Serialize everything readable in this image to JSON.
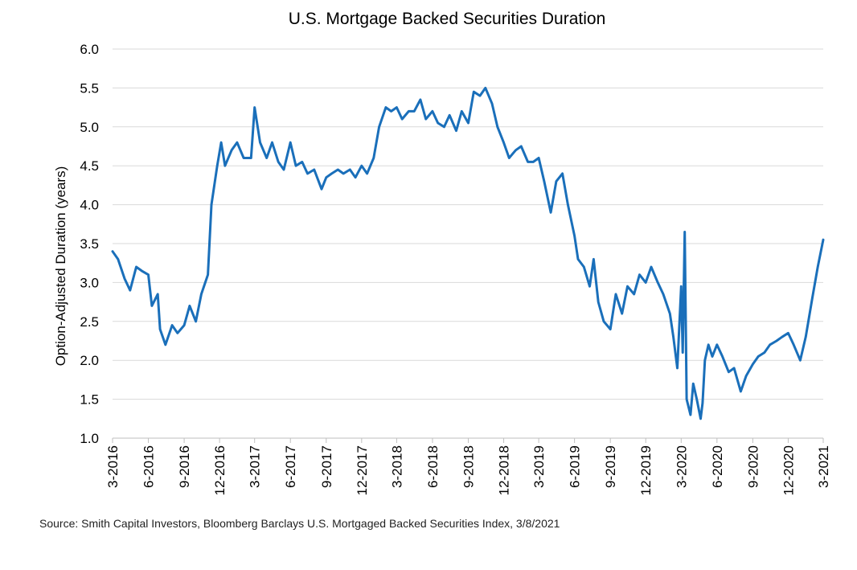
{
  "chart_data": {
    "type": "line",
    "title": "U.S. Mortgage Backed Securities Duration",
    "ylabel": "Option-Adjusted Duration (years)",
    "xlabel": "",
    "ylim": [
      1.0,
      6.0
    ],
    "yticks": [
      "1.0",
      "1.5",
      "2.0",
      "2.5",
      "3.0",
      "3.5",
      "4.0",
      "4.5",
      "5.0",
      "5.5",
      "6.0"
    ],
    "xticks": [
      "3-2016",
      "6-2016",
      "9-2016",
      "12-2016",
      "3-2017",
      "6-2017",
      "9-2017",
      "12-2017",
      "3-2018",
      "6-2018",
      "9-2018",
      "12-2018",
      "3-2019",
      "6-2019",
      "9-2019",
      "12-2019",
      "3-2020",
      "6-2020",
      "9-2020",
      "12-2020",
      "3-2021"
    ],
    "grid": "horizontal",
    "line_color": "#1a6fba",
    "series": [
      {
        "values": [
          [
            "2016-03",
            3.4
          ],
          [
            "2016-03-15",
            3.3
          ],
          [
            "2016-04",
            3.05
          ],
          [
            "2016-04-15",
            2.9
          ],
          [
            "2016-05",
            3.2
          ],
          [
            "2016-05-15",
            3.15
          ],
          [
            "2016-06",
            3.1
          ],
          [
            "2016-06-10",
            2.7
          ],
          [
            "2016-06-25",
            2.85
          ],
          [
            "2016-07",
            2.4
          ],
          [
            "2016-07-15",
            2.2
          ],
          [
            "2016-08",
            2.45
          ],
          [
            "2016-08-15",
            2.35
          ],
          [
            "2016-09",
            2.45
          ],
          [
            "2016-09-15",
            2.7
          ],
          [
            "2016-10",
            2.5
          ],
          [
            "2016-10-15",
            2.85
          ],
          [
            "2016-11-01",
            3.1
          ],
          [
            "2016-11-10",
            4.0
          ],
          [
            "2016-11-25",
            4.5
          ],
          [
            "2016-12-05",
            4.8
          ],
          [
            "2016-12-15",
            4.5
          ],
          [
            "2017-01",
            4.7
          ],
          [
            "2017-01-15",
            4.8
          ],
          [
            "2017-02",
            4.6
          ],
          [
            "2017-02-20",
            4.6
          ],
          [
            "2017-03",
            5.25
          ],
          [
            "2017-03-15",
            4.8
          ],
          [
            "2017-04",
            4.6
          ],
          [
            "2017-04-15",
            4.8
          ],
          [
            "2017-05",
            4.55
          ],
          [
            "2017-05-15",
            4.45
          ],
          [
            "2017-06",
            4.8
          ],
          [
            "2017-06-15",
            4.5
          ],
          [
            "2017-07",
            4.55
          ],
          [
            "2017-07-15",
            4.4
          ],
          [
            "2017-08",
            4.45
          ],
          [
            "2017-08-20",
            4.2
          ],
          [
            "2017-09",
            4.35
          ],
          [
            "2017-09-15",
            4.4
          ],
          [
            "2017-10",
            4.45
          ],
          [
            "2017-10-15",
            4.4
          ],
          [
            "2017-11",
            4.45
          ],
          [
            "2017-11-15",
            4.35
          ],
          [
            "2017-12",
            4.5
          ],
          [
            "2017-12-15",
            4.4
          ],
          [
            "2018-01",
            4.6
          ],
          [
            "2018-01-15",
            5.0
          ],
          [
            "2018-02",
            5.25
          ],
          [
            "2018-02-15",
            5.2
          ],
          [
            "2018-03",
            5.25
          ],
          [
            "2018-03-15",
            5.1
          ],
          [
            "2018-04",
            5.2
          ],
          [
            "2018-04-15",
            5.2
          ],
          [
            "2018-05",
            5.35
          ],
          [
            "2018-05-15",
            5.1
          ],
          [
            "2018-06",
            5.2
          ],
          [
            "2018-06-15",
            5.05
          ],
          [
            "2018-07",
            5.0
          ],
          [
            "2018-07-15",
            5.15
          ],
          [
            "2018-08",
            4.95
          ],
          [
            "2018-08-15",
            5.2
          ],
          [
            "2018-09",
            5.05
          ],
          [
            "2018-09-15",
            5.45
          ],
          [
            "2018-10",
            5.4
          ],
          [
            "2018-10-15",
            5.5
          ],
          [
            "2018-11",
            5.3
          ],
          [
            "2018-11-15",
            5.0
          ],
          [
            "2018-12",
            4.8
          ],
          [
            "2018-12-15",
            4.6
          ],
          [
            "2019-01",
            4.7
          ],
          [
            "2019-01-15",
            4.75
          ],
          [
            "2019-02",
            4.55
          ],
          [
            "2019-02-15",
            4.55
          ],
          [
            "2019-03",
            4.6
          ],
          [
            "2019-03-15",
            4.3
          ],
          [
            "2019-04",
            3.9
          ],
          [
            "2019-04-15",
            4.3
          ],
          [
            "2019-05",
            4.4
          ],
          [
            "2019-05-15",
            4.0
          ],
          [
            "2019-06",
            3.6
          ],
          [
            "2019-06-10",
            3.3
          ],
          [
            "2019-06-25",
            3.2
          ],
          [
            "2019-07",
            3.1
          ],
          [
            "2019-07-10",
            2.95
          ],
          [
            "2019-07-20",
            3.3
          ],
          [
            "2019-08",
            2.75
          ],
          [
            "2019-08-15",
            2.5
          ],
          [
            "2019-09",
            2.4
          ],
          [
            "2019-09-15",
            2.85
          ],
          [
            "2019-10",
            2.6
          ],
          [
            "2019-10-15",
            2.95
          ],
          [
            "2019-11",
            2.85
          ],
          [
            "2019-11-15",
            3.1
          ],
          [
            "2019-12",
            3.0
          ],
          [
            "2019-12-15",
            3.2
          ],
          [
            "2020-01",
            3.0
          ],
          [
            "2020-01-15",
            2.85
          ],
          [
            "2020-02",
            2.6
          ],
          [
            "2020-02-10",
            2.3
          ],
          [
            "2020-02-20",
            1.9
          ],
          [
            "2020-03-01",
            2.95
          ],
          [
            "2020-03-05",
            2.1
          ],
          [
            "2020-03-10",
            3.65
          ],
          [
            "2020-03-15",
            1.5
          ],
          [
            "2020-03-25",
            1.3
          ],
          [
            "2020-04",
            1.7
          ],
          [
            "2020-04-10",
            1.5
          ],
          [
            "2020-04-20",
            1.25
          ],
          [
            "2020-04-25",
            1.45
          ],
          [
            "2020-05-01",
            2.0
          ],
          [
            "2020-05-10",
            2.2
          ],
          [
            "2020-05-20",
            2.05
          ],
          [
            "2020-06",
            2.2
          ],
          [
            "2020-06-15",
            2.05
          ],
          [
            "2020-07",
            1.85
          ],
          [
            "2020-07-15",
            1.9
          ],
          [
            "2020-08",
            1.6
          ],
          [
            "2020-08-15",
            1.8
          ],
          [
            "2020-09",
            1.95
          ],
          [
            "2020-09-15",
            2.05
          ],
          [
            "2020-10",
            2.1
          ],
          [
            "2020-10-15",
            2.2
          ],
          [
            "2020-11",
            2.25
          ],
          [
            "2020-11-15",
            2.3
          ],
          [
            "2020-12",
            2.35
          ],
          [
            "2020-12-15",
            2.2
          ],
          [
            "2021-01",
            2.0
          ],
          [
            "2021-01-15",
            2.3
          ],
          [
            "2021-02",
            2.8
          ],
          [
            "2021-02-15",
            3.2
          ],
          [
            "2021-03-01",
            3.55
          ]
        ]
      }
    ]
  },
  "footer": {
    "source": "Source: Smith Capital Investors, Bloomberg Barclays U.S. Mortgaged Backed Securities Index, 3/8/2021"
  }
}
